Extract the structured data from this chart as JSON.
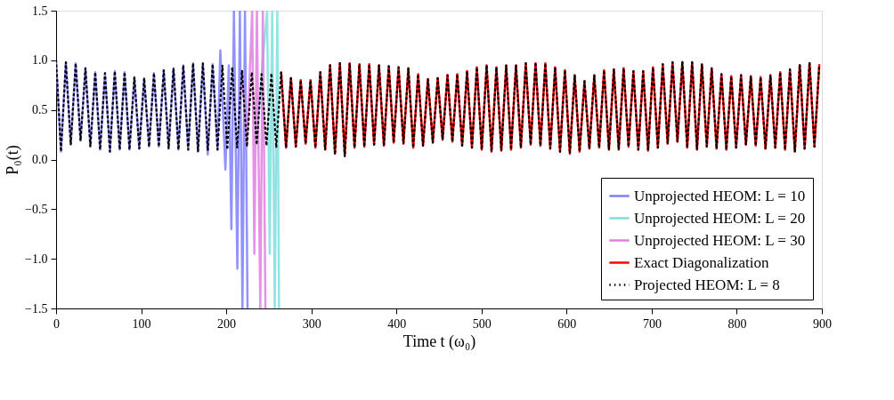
{
  "chart_data": {
    "type": "line",
    "xlabel": "Time t (ω₀)",
    "ylabel": "P₀(t)",
    "xlim": [
      0,
      900
    ],
    "ylim": [
      -1.5,
      1.5
    ],
    "xticks": [
      0,
      100,
      200,
      300,
      400,
      500,
      600,
      700,
      800,
      900
    ],
    "yticks": [
      {
        "value": -1.5,
        "label": "−1.5"
      },
      {
        "value": -1.0,
        "label": "−1.0"
      },
      {
        "value": -0.5,
        "label": "−0.5"
      },
      {
        "value": 0.0,
        "label": "0.0"
      },
      {
        "value": 0.5,
        "label": "0.5"
      },
      {
        "value": 1.0,
        "label": "1.0"
      },
      {
        "value": 1.5,
        "label": "1.5"
      }
    ],
    "grid": false,
    "legend": "bottom right",
    "x": [
      0,
      5.75,
      11.5,
      17.25,
      23,
      28.75,
      34.5,
      40.25,
      46,
      51.75,
      57.5,
      63.25,
      69,
      74.75,
      80.5,
      86.25,
      92,
      97.75,
      103.5,
      109.25,
      115,
      120.75,
      126.5,
      132.25,
      138,
      143.75,
      149.5,
      155.25,
      161,
      166.75,
      172.5,
      178.25,
      184,
      189.75,
      195.5,
      201.25,
      207,
      212.75,
      218.5,
      224.25,
      230,
      235.75,
      241.5,
      247.25,
      253,
      258.75,
      264.5,
      270.25,
      276,
      281.75,
      287.5,
      293.25,
      299,
      304.75,
      310.5,
      316.25,
      322,
      327.75,
      333.5,
      339.25,
      345,
      350.75,
      356.5,
      362.25,
      368,
      373.75,
      379.5,
      385.25,
      391,
      396.75,
      402.5,
      408.25,
      414,
      419.75,
      425.5,
      431.25,
      437,
      442.75,
      448.5,
      454.25,
      460,
      465.75,
      471.5,
      477.25,
      483,
      488.75,
      494.5,
      500.25,
      506,
      511.75,
      517.5,
      523.25,
      529,
      534.75,
      540.5,
      546.25,
      552,
      557.75,
      563.5,
      569.25,
      575,
      580.75,
      586.5,
      592.25,
      598,
      603.75,
      609.5,
      615.25,
      621,
      626.75,
      632.5,
      638.25,
      644,
      649.75,
      655.5,
      661.25,
      667,
      672.75,
      678.5,
      684.25,
      690,
      695.75,
      701.5,
      707.25,
      713,
      718.75,
      724.5,
      730.25,
      736,
      741.75,
      747.5,
      753.25,
      759,
      764.75,
      770.5,
      776.25,
      782,
      787.75,
      793.5,
      799.25,
      805,
      810.75,
      816.5,
      822.25,
      828,
      833.75,
      839.5,
      845.25,
      851,
      856.75,
      862.5,
      868.25,
      874,
      879.75,
      885.5,
      891.25,
      897
    ],
    "series": [
      {
        "name": "Unprojected HEOM: L = 10",
        "color": "#7f7fff",
        "x": [
          0,
          5.75,
          11.5,
          17.25,
          23,
          28.75,
          34.5,
          40.25,
          46,
          51.75,
          57.5,
          63.25,
          69,
          74.75,
          80.5,
          86.25,
          92,
          97.75,
          103.5,
          109.25,
          115,
          120.75,
          126.5,
          132.25,
          138,
          143.75,
          149.5,
          155.25,
          161,
          166.75,
          172.5,
          178.25,
          184,
          189.75,
          193,
          199,
          203,
          206,
          209,
          213,
          216,
          219,
          222,
          225
        ],
        "values": [
          1.0,
          0.08,
          0.98,
          0.15,
          0.97,
          0.19,
          0.92,
          0.13,
          0.88,
          0.1,
          0.87,
          0.08,
          0.89,
          0.1,
          0.88,
          0.1,
          0.83,
          0.11,
          0.82,
          0.13,
          0.87,
          0.13,
          0.9,
          0.11,
          0.92,
          0.1,
          0.95,
          0.1,
          0.97,
          0.08,
          0.97,
          0.05,
          0.96,
          0.1,
          1.1,
          -0.1,
          0.95,
          -0.7,
          1.5,
          -1.1,
          1.5,
          -1.5,
          1.5,
          -1.5
        ]
      },
      {
        "name": "Unprojected HEOM: L = 20",
        "color": "#7fdfdf",
        "x": [
          235.75,
          241.5,
          248,
          251,
          254,
          257,
          260,
          262
        ],
        "values": [
          0.15,
          0.86,
          1.5,
          -0.95,
          1.5,
          -1.5,
          1.5,
          -1.5
        ]
      },
      {
        "name": "Unprojected HEOM: L = 30",
        "color": "#df7fdf",
        "x": [
          218.5,
          224.25,
          230.5,
          233,
          236,
          240,
          243,
          246
        ],
        "values": [
          0.9,
          0.13,
          1.5,
          -0.95,
          1.5,
          -1.5,
          1.5,
          -1.5
        ]
      },
      {
        "name": "Exact Diagonalization",
        "color": "#ff0000",
        "values": [
          null,
          null,
          null,
          null,
          null,
          null,
          null,
          null,
          null,
          null,
          null,
          null,
          null,
          null,
          null,
          null,
          null,
          null,
          null,
          null,
          null,
          null,
          null,
          null,
          null,
          null,
          null,
          null,
          null,
          null,
          null,
          null,
          null,
          null,
          null,
          null,
          null,
          null,
          null,
          null,
          null,
          null,
          null,
          null,
          null,
          null,
          0.88,
          0.12,
          0.82,
          0.13,
          0.8,
          0.16,
          0.8,
          0.12,
          0.88,
          0.1,
          0.95,
          0.06,
          0.97,
          0.04,
          0.97,
          0.12,
          0.96,
          0.13,
          0.96,
          0.15,
          0.95,
          0.14,
          0.94,
          0.17,
          0.93,
          0.16,
          0.92,
          0.12,
          0.86,
          0.14,
          0.81,
          0.17,
          0.82,
          0.2,
          0.85,
          0.18,
          0.86,
          0.14,
          0.89,
          0.12,
          0.93,
          0.1,
          0.95,
          0.08,
          0.93,
          0.09,
          0.95,
          0.1,
          0.95,
          0.12,
          0.97,
          0.15,
          0.97,
          0.14,
          0.97,
          0.11,
          0.93,
          0.08,
          0.9,
          0.06,
          0.85,
          0.08,
          0.79,
          0.11,
          0.85,
          0.12,
          0.9,
          0.1,
          0.91,
          0.1,
          0.92,
          0.13,
          0.89,
          0.1,
          0.89,
          0.09,
          0.93,
          0.12,
          0.96,
          0.16,
          0.98,
          0.18,
          0.98,
          0.12,
          0.98,
          0.1,
          0.96,
          0.13,
          0.92,
          0.11,
          0.86,
          0.1,
          0.84,
          0.12,
          0.85,
          0.15,
          0.84,
          0.14,
          0.83,
          0.11,
          0.85,
          0.12,
          0.88,
          0.1,
          0.9,
          0.08,
          0.95,
          0.11,
          0.97,
          0.13,
          0.96
        ]
      },
      {
        "name": "Projected HEOM: L = 8",
        "color": "#000000",
        "line_style": "dotted",
        "values": [
          1.0,
          0.08,
          0.98,
          0.15,
          0.97,
          0.19,
          0.92,
          0.13,
          0.88,
          0.1,
          0.87,
          0.08,
          0.89,
          0.1,
          0.88,
          0.1,
          0.83,
          0.11,
          0.82,
          0.13,
          0.87,
          0.13,
          0.9,
          0.11,
          0.92,
          0.1,
          0.95,
          0.1,
          0.97,
          0.08,
          0.97,
          0.09,
          0.96,
          0.1,
          0.95,
          0.1,
          0.93,
          0.12,
          0.9,
          0.13,
          0.88,
          0.15,
          0.86,
          0.14,
          0.87,
          0.12,
          0.88,
          0.12,
          0.82,
          0.13,
          0.8,
          0.16,
          0.8,
          0.12,
          0.88,
          0.1,
          0.95,
          0.05,
          0.97,
          0.03,
          0.97,
          0.12,
          0.96,
          0.13,
          0.96,
          0.15,
          0.95,
          0.14,
          0.94,
          0.17,
          0.93,
          0.16,
          0.92,
          0.12,
          0.86,
          0.14,
          0.81,
          0.17,
          0.82,
          0.2,
          0.85,
          0.18,
          0.86,
          0.14,
          0.89,
          0.12,
          0.93,
          0.1,
          0.95,
          0.08,
          0.93,
          0.09,
          0.95,
          0.1,
          0.95,
          0.12,
          0.97,
          0.15,
          0.98,
          0.14,
          0.97,
          0.11,
          0.93,
          0.08,
          0.9,
          0.06,
          0.85,
          0.08,
          0.79,
          0.11,
          0.85,
          0.12,
          0.9,
          0.1,
          0.91,
          0.1,
          0.92,
          0.13,
          0.89,
          0.1,
          0.89,
          0.09,
          0.93,
          0.12,
          0.96,
          0.16,
          0.98,
          0.18,
          0.99,
          0.12,
          0.98,
          0.1,
          0.96,
          0.13,
          0.92,
          0.11,
          0.86,
          0.1,
          0.84,
          0.12,
          0.85,
          0.15,
          0.84,
          0.14,
          0.83,
          0.11,
          0.85,
          0.12,
          0.88,
          0.1,
          0.91,
          0.08,
          0.96,
          0.11,
          0.98,
          0.13,
          0.96
        ]
      }
    ]
  }
}
